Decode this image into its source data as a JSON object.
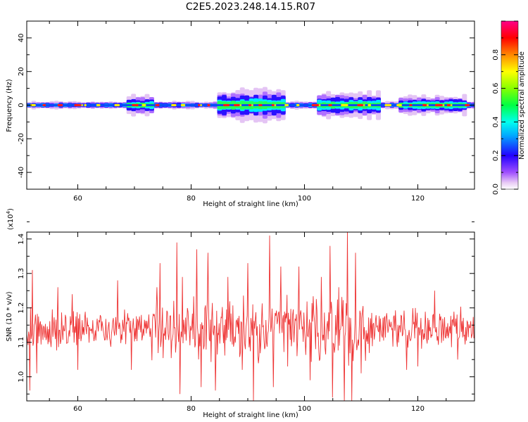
{
  "title": "C2E5.2023.248.14.15.R07",
  "chart_data": [
    {
      "type": "heatmap",
      "xlabel": "Height of straight line (km)",
      "ylabel": "Frequency (Hz)",
      "xlim": [
        51,
        130
      ],
      "ylim": [
        -50,
        50
      ],
      "x_ticks": [
        60,
        80,
        100,
        120
      ],
      "y_ticks": [
        40,
        20,
        0,
        -20,
        -40
      ],
      "colorbar": {
        "label": "Normalized spectral amplitude",
        "range": [
          0,
          1
        ],
        "ticks": [
          "0.0",
          "0.2",
          "0.4",
          "0.6",
          "0.8"
        ],
        "colormap": "rainbow (violet → blue → cyan → green → yellow → red → pink)"
      },
      "band": {
        "center_hz": 0,
        "core_half_width_hz": 1,
        "spread_regions": [
          {
            "x": [
              68,
              73
            ],
            "half_width_hz": 3
          },
          {
            "x": [
              84,
              96
            ],
            "half_width_hz": 5
          },
          {
            "x": [
              102,
              113
            ],
            "half_width_hz": 4
          },
          {
            "x": [
              116,
              128
            ],
            "half_width_hz": 3
          }
        ],
        "peak_value": 1.0
      }
    },
    {
      "type": "line",
      "xlabel": "Height of straight line (km)",
      "ylabel": "SNR (10 * v/v)",
      "multiplier_label": "(x10",
      "multiplier_exp": "4",
      "multiplier_close": ")",
      "xlim": [
        51,
        130
      ],
      "ylim": [
        0.93,
        1.42
      ],
      "x_ticks": [
        60,
        80,
        100,
        120
      ],
      "y_ticks": [
        "1.0",
        "1.1",
        "1.2",
        "1.3",
        "1.4"
      ],
      "line_color": "#ee3333",
      "n_points": 720,
      "series": [
        {
          "x_range": [
            51,
            130
          ],
          "mean": 1.14,
          "keypoints": [
            [
              51.6,
              0.96
            ],
            [
              52.0,
              1.31
            ],
            [
              52.8,
              1.01
            ],
            [
              56.5,
              1.26
            ],
            [
              59.0,
              1.24
            ],
            [
              60.0,
              1.02
            ],
            [
              67.0,
              1.28
            ],
            [
              69.5,
              1.02
            ],
            [
              74.0,
              1.26
            ],
            [
              74.5,
              1.33
            ],
            [
              77.5,
              1.39
            ],
            [
              78.0,
              0.95
            ],
            [
              78.5,
              1.29
            ],
            [
              81.0,
              1.37
            ],
            [
              81.8,
              0.97
            ],
            [
              83.0,
              1.36
            ],
            [
              84.3,
              0.96
            ],
            [
              86.5,
              1.29
            ],
            [
              89.0,
              1.02
            ],
            [
              90.0,
              1.33
            ],
            [
              91.0,
              0.93
            ],
            [
              93.8,
              1.41
            ],
            [
              94.5,
              0.97
            ],
            [
              95.8,
              1.32
            ],
            [
              97.0,
              1.03
            ],
            [
              99.0,
              1.32
            ],
            [
              101.0,
              0.99
            ],
            [
              103.0,
              1.29
            ],
            [
              104.5,
              1.38
            ],
            [
              105.0,
              0.94
            ],
            [
              106.0,
              1.26
            ],
            [
              107.0,
              0.93
            ],
            [
              107.6,
              1.42
            ],
            [
              108.3,
              0.93
            ],
            [
              109.0,
              1.36
            ],
            [
              110.0,
              1.01
            ],
            [
              118.0,
              1.02
            ],
            [
              120.0,
              1.03
            ],
            [
              123.0,
              1.25
            ],
            [
              127.0,
              1.05
            ]
          ]
        }
      ]
    }
  ]
}
